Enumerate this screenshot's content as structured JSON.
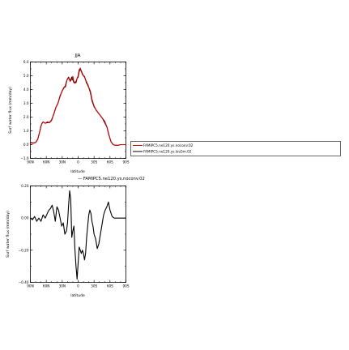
{
  "chart_data": [
    {
      "type": "line",
      "title": "JJA",
      "xlabel": "latitude",
      "ylabel": "Surf water flux (mm/day)",
      "x_tick_labels": [
        "90N",
        "60N",
        "30N",
        "0",
        "30S",
        "60S",
        "90S"
      ],
      "x_ticks": [
        90,
        60,
        30,
        0,
        -30,
        -60,
        -90
      ],
      "xlim": [
        90,
        -90
      ],
      "ylim": [
        -1.0,
        6.0
      ],
      "y_ticks": [
        -1.0,
        0.0,
        1.0,
        2.0,
        3.0,
        4.0,
        5.0,
        6.0
      ],
      "y_tick_labels": [
        "−1.0",
        "0.0",
        "1.0",
        "2.0",
        "3.0",
        "4.0",
        "5.0",
        "6.0"
      ],
      "legend": "right",
      "series": [
        {
          "name": "FAMIPC5.ne120.ys.noconv.02",
          "color": "#cc0000",
          "x": [
            90,
            85,
            80,
            76,
            72,
            70,
            68,
            66,
            62,
            58,
            54,
            50,
            46,
            42,
            38,
            34,
            30,
            27,
            24,
            21,
            18,
            15,
            12,
            10,
            8,
            6,
            4,
            2,
            0,
            -2,
            -4,
            -6,
            -8,
            -10,
            -12,
            -14,
            -16,
            -18,
            -20,
            -23,
            -26,
            -30,
            -34,
            -38,
            -42,
            -46,
            -50,
            -54,
            -58,
            -62,
            -66,
            -70,
            -75,
            -80,
            -85,
            -90
          ],
          "y": [
            0.12,
            0.1,
            0.15,
            0.4,
            1.0,
            1.35,
            1.55,
            1.65,
            1.55,
            1.65,
            1.6,
            1.75,
            2.2,
            2.7,
            3.0,
            3.5,
            3.9,
            4.1,
            4.3,
            4.7,
            4.85,
            4.6,
            4.75,
            4.95,
            4.55,
            4.45,
            4.6,
            4.8,
            5.0,
            5.45,
            5.5,
            5.3,
            5.1,
            5.0,
            4.9,
            4.7,
            4.55,
            4.3,
            4.15,
            3.9,
            3.3,
            2.8,
            2.5,
            2.3,
            2.1,
            1.9,
            1.7,
            1.3,
            0.7,
            0.2,
            0.0,
            -0.05,
            -0.05,
            0.0,
            0.0,
            0.0
          ]
        },
        {
          "name": "FAMIPC5.ne120.ys.lou5m.02",
          "color": "#000000",
          "x": [
            90,
            85,
            80,
            76,
            72,
            70,
            68,
            66,
            62,
            58,
            54,
            50,
            46,
            42,
            38,
            34,
            30,
            27,
            24,
            21,
            18,
            15,
            12,
            10,
            8,
            6,
            4,
            2,
            0,
            -2,
            -4,
            -6,
            -8,
            -10,
            -12,
            -14,
            -16,
            -18,
            -20,
            -23,
            -26,
            -30,
            -34,
            -38,
            -42,
            -46,
            -50,
            -54,
            -58,
            -62,
            -66,
            -70,
            -75,
            -80,
            -85,
            -90
          ],
          "y": [
            0.15,
            0.12,
            0.15,
            0.4,
            1.0,
            1.35,
            1.55,
            1.65,
            1.55,
            1.6,
            1.6,
            1.8,
            2.2,
            2.7,
            3.0,
            3.55,
            3.9,
            4.15,
            4.2,
            4.7,
            4.9,
            4.6,
            4.9,
            4.7,
            4.5,
            4.55,
            4.5,
            4.8,
            4.9,
            5.3,
            5.55,
            5.35,
            5.15,
            5.0,
            4.95,
            4.7,
            4.45,
            4.4,
            4.15,
            3.8,
            3.2,
            2.75,
            2.5,
            2.3,
            2.1,
            1.9,
            1.6,
            1.3,
            0.7,
            0.2,
            0.0,
            -0.05,
            -0.05,
            0.0,
            0.0,
            0.0
          ]
        }
      ]
    },
    {
      "type": "line",
      "title": "— FAMIPC5.ne120.ys.noconv.02",
      "xlabel": "latitude",
      "ylabel": "Surf water flux (mm/day)",
      "x_tick_labels": [
        "90N",
        "60N",
        "30N",
        "0",
        "30S",
        "60S",
        "90S"
      ],
      "x_ticks": [
        90,
        60,
        30,
        0,
        -30,
        -60,
        -90
      ],
      "xlim": [
        90,
        -90
      ],
      "ylim": [
        -0.4,
        0.2
      ],
      "y_ticks": [
        -0.4,
        -0.2,
        0.0,
        0.2
      ],
      "y_tick_labels": [
        "−0.40",
        "−0.20",
        "0.00",
        "0.20"
      ],
      "series": [
        {
          "color": "#000000",
          "x": [
            90,
            86,
            82,
            78,
            74,
            70,
            66,
            62,
            58,
            55,
            52,
            49,
            46,
            43,
            40,
            37,
            34,
            31,
            28,
            25,
            22,
            20,
            18,
            16,
            14,
            12,
            10,
            8,
            6,
            4,
            2,
            0,
            -2,
            -4,
            -6,
            -8,
            -10,
            -12,
            -14,
            -16,
            -18,
            -20,
            -22,
            -24,
            -26,
            -28,
            -30,
            -33,
            -36,
            -39,
            -42,
            -45,
            -48,
            -51,
            -54,
            -57,
            -60,
            -64,
            -68,
            -72,
            -76,
            -80,
            -85,
            -90
          ],
          "y": [
            0.0,
            -0.01,
            0.01,
            -0.02,
            0.0,
            -0.02,
            0.02,
            0.0,
            0.03,
            0.05,
            0.06,
            0.08,
            0.04,
            -0.02,
            0.07,
            0.05,
            0.0,
            -0.05,
            -0.03,
            -0.1,
            -0.08,
            -0.03,
            0.08,
            0.17,
            0.12,
            -0.12,
            -0.08,
            -0.05,
            -0.2,
            -0.3,
            -0.38,
            -0.28,
            -0.18,
            -0.2,
            -0.22,
            -0.2,
            -0.22,
            -0.26,
            -0.22,
            -0.12,
            -0.05,
            0.02,
            0.05,
            0.03,
            -0.02,
            -0.05,
            -0.1,
            -0.13,
            -0.19,
            -0.16,
            -0.1,
            -0.04,
            0.02,
            0.05,
            0.07,
            0.1,
            0.05,
            0.01,
            0.0,
            0.0,
            0.0,
            0.0,
            0.0,
            0.0
          ]
        }
      ]
    }
  ]
}
